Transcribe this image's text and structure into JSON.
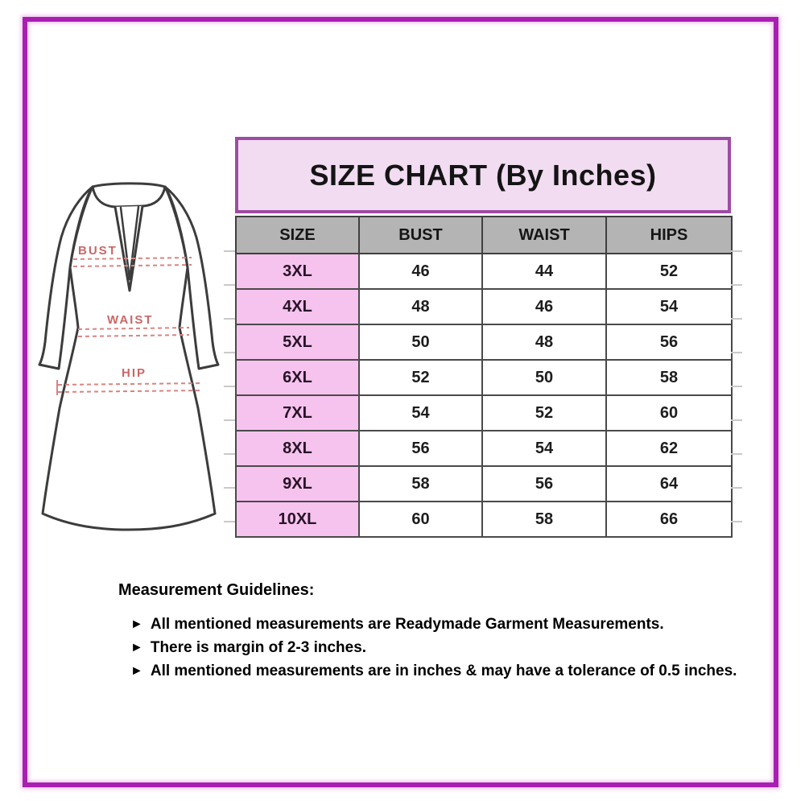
{
  "size_chart": {
    "title": "SIZE CHART (By Inches)",
    "columns": [
      "SIZE",
      "BUST",
      "WAIST",
      "HIPS"
    ],
    "rows": [
      {
        "size": "3XL",
        "bust": "46",
        "waist": "44",
        "hips": "52"
      },
      {
        "size": "4XL",
        "bust": "48",
        "waist": "46",
        "hips": "54"
      },
      {
        "size": "5XL",
        "bust": "50",
        "waist": "48",
        "hips": "56"
      },
      {
        "size": "6XL",
        "bust": "52",
        "waist": "50",
        "hips": "58"
      },
      {
        "size": "7XL",
        "bust": "54",
        "waist": "52",
        "hips": "60"
      },
      {
        "size": "8XL",
        "bust": "56",
        "waist": "54",
        "hips": "62"
      },
      {
        "size": "9XL",
        "bust": "58",
        "waist": "56",
        "hips": "64"
      },
      {
        "size": "10XL",
        "bust": "60",
        "waist": "58",
        "hips": "66"
      }
    ]
  },
  "garment_labels": {
    "bust": "BUST",
    "waist": "WAIST",
    "hip": "HIP"
  },
  "guidelines": {
    "heading": "Measurement Guidelines:",
    "bullet_icon": "►",
    "items": [
      "All mentioned measurements are Readymade Garment Measurements.",
      "There is margin of 2-3 inches.",
      "All mentioned measurements are in inches & may have a tolerance of 0.5 inches."
    ]
  },
  "colors": {
    "frame_border": "#a81fb2",
    "title_bg": "#f1dcf1",
    "title_border": "#9c4da2",
    "header_bg": "#b4b4b4",
    "size_column_bg": "#f6c3ee",
    "grid_line": "#4a4a4a",
    "measurement_red": "#ca6767"
  },
  "chart_data": {
    "type": "table",
    "title": "SIZE CHART (By Inches)",
    "columns": [
      "SIZE",
      "BUST",
      "WAIST",
      "HIPS"
    ],
    "rows": [
      [
        "3XL",
        46,
        44,
        52
      ],
      [
        "4XL",
        48,
        46,
        54
      ],
      [
        "5XL",
        50,
        48,
        56
      ],
      [
        "6XL",
        52,
        50,
        58
      ],
      [
        "7XL",
        54,
        52,
        60
      ],
      [
        "8XL",
        56,
        54,
        62
      ],
      [
        "9XL",
        58,
        56,
        64
      ],
      [
        "10XL",
        60,
        58,
        66
      ]
    ],
    "notes": [
      "All mentioned measurements are Readymade Garment Measurements.",
      "There is margin of 2-3 inches.",
      "All mentioned measurements are in inches & may have a tolerance of 0.5 inches."
    ]
  }
}
